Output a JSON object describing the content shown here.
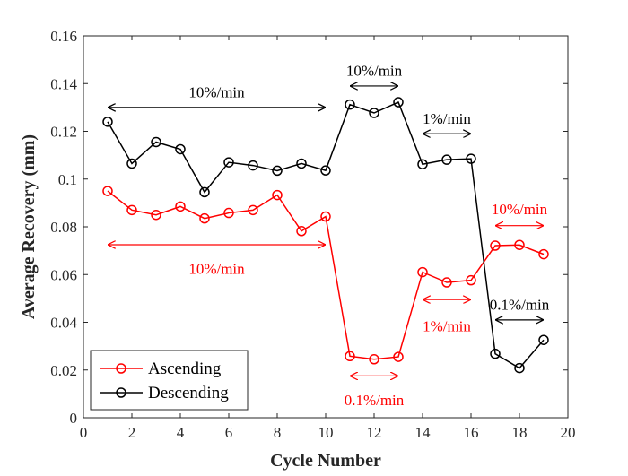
{
  "chart_data": {
    "type": "line",
    "title": "",
    "xlabel": "Cycle Number",
    "ylabel": "Average Recovery (mm)",
    "xlim": [
      0,
      20
    ],
    "ylim": [
      0,
      0.16
    ],
    "xticks": [
      0,
      2,
      4,
      6,
      8,
      10,
      12,
      14,
      16,
      18,
      20
    ],
    "xtick_labels": [
      "0",
      "2",
      "4",
      "6",
      "8",
      "10",
      "12",
      "14",
      "16",
      "18",
      "20"
    ],
    "yticks": [
      0,
      0.02,
      0.04,
      0.06,
      0.08,
      0.1,
      0.12,
      0.14,
      0.16
    ],
    "ytick_labels": [
      "0",
      "0.02",
      "0.04",
      "0.06",
      "0.08",
      "0.1",
      "0.12",
      "0.14",
      "0.16"
    ],
    "grid": false,
    "legend_position": "bottom-left",
    "x": [
      1,
      2,
      3,
      4,
      5,
      6,
      7,
      8,
      9,
      10,
      11,
      12,
      13,
      14,
      15,
      16,
      17,
      18,
      19
    ],
    "series": [
      {
        "name": "Ascending",
        "color": "#ff0000",
        "marker": "circle",
        "values": [
          0.095,
          0.087,
          0.085,
          0.0885,
          0.0835,
          0.0858,
          0.087,
          0.0933,
          0.0782,
          0.0843,
          0.0258,
          0.0245,
          0.0255,
          0.061,
          0.0567,
          0.0576,
          0.0721,
          0.0724,
          0.0685
        ]
      },
      {
        "name": "Descending",
        "color": "#000000",
        "marker": "circle",
        "values": [
          0.124,
          0.1065,
          0.1155,
          0.1125,
          0.0945,
          0.107,
          0.1057,
          0.1035,
          0.1065,
          0.1036,
          0.1312,
          0.1277,
          0.1322,
          0.1062,
          0.1081,
          0.1085,
          0.0268,
          0.0208,
          0.0326
        ]
      }
    ],
    "annotations": [
      {
        "text": "10%/min",
        "color": "#000000",
        "x_from": 1,
        "x_to": 10,
        "y": 0.13,
        "label_x": 5.5,
        "label_y": 0.1365
      },
      {
        "text": "10%/min",
        "color": "#000000",
        "x_from": 11,
        "x_to": 13,
        "y": 0.139,
        "label_x": 12,
        "label_y": 0.1455
      },
      {
        "text": "1%/min",
        "color": "#000000",
        "x_from": 14,
        "x_to": 16,
        "y": 0.119,
        "label_x": 15,
        "label_y": 0.1255
      },
      {
        "text": "0.1%/min",
        "color": "#000000",
        "x_from": 17,
        "x_to": 19,
        "y": 0.041,
        "label_x": 18,
        "label_y": 0.0475
      },
      {
        "text": "10%/min",
        "color": "#ff0000",
        "x_from": 1,
        "x_to": 10,
        "y": 0.0725,
        "label_x": 5.5,
        "label_y": 0.0625
      },
      {
        "text": "0.1%/min",
        "color": "#ff0000",
        "x_from": 11,
        "x_to": 13,
        "y": 0.0175,
        "label_x": 12,
        "label_y": 0.0075
      },
      {
        "text": "1%/min",
        "color": "#ff0000",
        "x_from": 14,
        "x_to": 16,
        "y": 0.0495,
        "label_x": 15,
        "label_y": 0.0385
      },
      {
        "text": "10%/min",
        "color": "#ff0000",
        "x_from": 17,
        "x_to": 19,
        "y": 0.0805,
        "label_x": 18,
        "label_y": 0.0875
      }
    ]
  }
}
